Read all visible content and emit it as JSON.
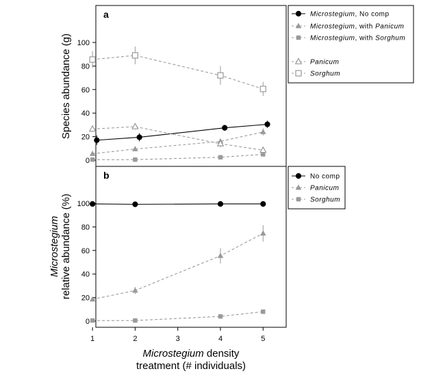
{
  "chart_data": [
    {
      "type": "line",
      "panel_label": "a",
      "ylabel": "Species abundance (g)",
      "xlim": [
        0,
        6
      ],
      "ylim": [
        0,
        110
      ],
      "x_ticks": [
        1,
        2,
        3,
        4,
        5
      ],
      "y_ticks": [
        0,
        20,
        40,
        60,
        80,
        100
      ],
      "grid": false,
      "legend_position": "right, outside plot",
      "series": [
        {
          "label_italic": "Microstegium",
          "label_rest": ", No comp",
          "line": "solid",
          "color": "#000000",
          "marker": "filled-circle",
          "points": [
            {
              "x": 1.1,
              "y": 17,
              "err": 4
            },
            {
              "x": 2.1,
              "y": 19.5,
              "err": 3.5
            },
            {
              "x": 4.1,
              "y": 27.5,
              "err": 2.5
            },
            {
              "x": 5.1,
              "y": 30.5,
              "err": 3
            }
          ]
        },
        {
          "label_italic": "Microstegium",
          "label_rest": ", with ",
          "label_italic2": "Panicum",
          "line": "dashed",
          "color": "#9a9a9a",
          "marker": "filled-triangle",
          "points": [
            {
              "x": 1.0,
              "y": 5.5,
              "err": 0
            },
            {
              "x": 2.0,
              "y": 9.5,
              "err": 0
            },
            {
              "x": 4.0,
              "y": 16,
              "err": 2.5
            },
            {
              "x": 5.0,
              "y": 24,
              "err": 3
            }
          ]
        },
        {
          "label_italic": "Microstegium",
          "label_rest": ", with ",
          "label_italic2": "Sorghum",
          "line": "dashed",
          "color": "#9a9a9a",
          "marker": "filled-square",
          "points": [
            {
              "x": 1.0,
              "y": 0.5,
              "err": 0
            },
            {
              "x": 2.0,
              "y": 0.5,
              "err": 0
            },
            {
              "x": 4.0,
              "y": 2.5,
              "err": 0
            },
            {
              "x": 5.0,
              "y": 5,
              "err": 0
            }
          ]
        },
        {
          "label_italic": "Panicum",
          "label_rest": "",
          "line": "dashed",
          "color": "#9a9a9a",
          "marker": "open-triangle",
          "points": [
            {
              "x": 1.0,
              "y": 26.5,
              "err": 1.5
            },
            {
              "x": 2.0,
              "y": 28.5,
              "err": 2.5
            },
            {
              "x": 4.0,
              "y": 14,
              "err": 3
            },
            {
              "x": 5.0,
              "y": 8.5,
              "err": 2.5
            }
          ]
        },
        {
          "label_italic": "Sorghum",
          "label_rest": "",
          "line": "dashed",
          "color": "#9a9a9a",
          "marker": "open-square",
          "points": [
            {
              "x": 1.0,
              "y": 85.5,
              "err": 7
            },
            {
              "x": 2.0,
              "y": 89,
              "err": 7.5
            },
            {
              "x": 4.0,
              "y": 72,
              "err": 8
            },
            {
              "x": 5.0,
              "y": 60.5,
              "err": 6
            }
          ]
        }
      ]
    },
    {
      "type": "line",
      "panel_label": "b",
      "ylabel_italic": "Microstegium",
      "ylabel_rest": "relative abundance (%)",
      "xlabel_italic": "Microstegium",
      "xlabel_rest": " density",
      "xlabel_line2": "treatment (# individuals)",
      "xlim": [
        0,
        6
      ],
      "ylim": [
        0,
        110
      ],
      "x_ticks": [
        1,
        2,
        3,
        4,
        5
      ],
      "y_ticks": [
        0,
        20,
        40,
        60,
        80,
        100
      ],
      "grid": false,
      "legend_position": "right, outside plot",
      "series": [
        {
          "label_italic": "",
          "label_rest": "No comp",
          "line": "solid",
          "color": "#000000",
          "marker": "filled-circle",
          "points": [
            {
              "x": 1.0,
              "y": 99.5,
              "err": 0
            },
            {
              "x": 2.0,
              "y": 99.2,
              "err": 0
            },
            {
              "x": 4.0,
              "y": 99.5,
              "err": 0
            },
            {
              "x": 5.0,
              "y": 99.5,
              "err": 0
            }
          ]
        },
        {
          "label_italic": "Panicum",
          "label_rest": "",
          "line": "dashed",
          "color": "#9a9a9a",
          "marker": "filled-triangle",
          "points": [
            {
              "x": 1.0,
              "y": 18.5,
              "err": 1.5
            },
            {
              "x": 2.0,
              "y": 26,
              "err": 3
            },
            {
              "x": 4.0,
              "y": 55.5,
              "err": 6.5
            },
            {
              "x": 5.0,
              "y": 74.5,
              "err": 7
            }
          ]
        },
        {
          "label_italic": "Sorghum",
          "label_rest": "",
          "line": "dashed",
          "color": "#9a9a9a",
          "marker": "filled-square",
          "points": [
            {
              "x": 1.0,
              "y": 0.5,
              "err": 0
            },
            {
              "x": 2.0,
              "y": 0.5,
              "err": 0
            },
            {
              "x": 4.0,
              "y": 4,
              "err": 0
            },
            {
              "x": 5.0,
              "y": 8,
              "err": 0
            }
          ]
        }
      ]
    }
  ]
}
